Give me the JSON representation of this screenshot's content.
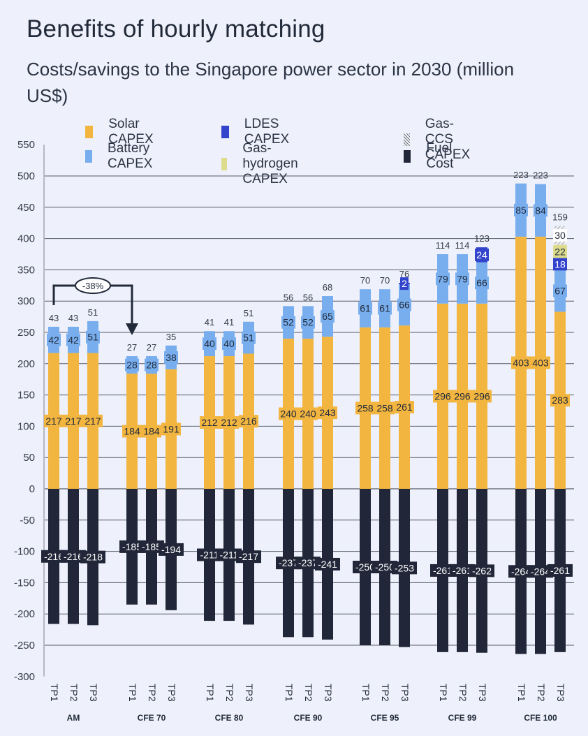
{
  "header": {
    "title": "Benefits of hourly matching",
    "subtitle": "Costs/savings to the Singapore power sector in 2030 (million US$)"
  },
  "colors": {
    "solar": "#f2b53f",
    "battery": "#78aeee",
    "ldes": "#3344cc",
    "gas_hydrogen": "#dcdc8c",
    "gas_ccs": "#a0a0a0",
    "fuel": "#212738",
    "background": "#eef1fb",
    "grid": "#555b68"
  },
  "legend": [
    {
      "key": "solar",
      "label": "Solar CAPEX"
    },
    {
      "key": "ldes",
      "label": "LDES CAPEX"
    },
    {
      "key": "gas_ccs",
      "label": "Gas-CCS CAPEX"
    },
    {
      "key": "battery",
      "label": "Battery CAPEX"
    },
    {
      "key": "gas_hydrogen",
      "label": "Gas-hydrogen CAPEX"
    },
    {
      "key": "fuel",
      "label": "Fuel Cost"
    }
  ],
  "annotation": {
    "label": "-38%",
    "from": "AM TP1",
    "to": "CFE 70 TP1"
  },
  "chart_data": {
    "type": "bar",
    "stacked": true,
    "title": "Benefits of hourly matching",
    "subtitle": "Costs/savings to the Singapore power sector in 2030 (million US$)",
    "xlabel": "",
    "ylabel": "",
    "ylim": [
      -300,
      550
    ],
    "yticks": [
      550,
      500,
      450,
      400,
      350,
      300,
      250,
      200,
      150,
      100,
      50,
      0,
      -50,
      -100,
      -150,
      -200,
      -250,
      -300
    ],
    "grid": true,
    "legend_position": "top",
    "groups": [
      "AM",
      "CFE 70",
      "CFE 80",
      "CFE 90",
      "CFE 95",
      "CFE 99",
      "CFE 100"
    ],
    "sub_categories": [
      "TP1",
      "TP2",
      "TP3"
    ],
    "categories": [
      "AM TP1",
      "AM TP2",
      "AM TP3",
      "CFE 70 TP1",
      "CFE 70 TP2",
      "CFE 70 TP3",
      "CFE 80 TP1",
      "CFE 80 TP2",
      "CFE 80 TP3",
      "CFE 90 TP1",
      "CFE 90 TP2",
      "CFE 90 TP3",
      "CFE 95 TP1",
      "CFE 95 TP2",
      "CFE 95 TP3",
      "CFE 99 TP1",
      "CFE 99 TP2",
      "CFE 99 TP3",
      "CFE 100 TP1",
      "CFE 100 TP2",
      "CFE 100 TP3"
    ],
    "series": [
      {
        "name": "Solar CAPEX",
        "key": "solar",
        "values": [
          217,
          217,
          217,
          184,
          184,
          191,
          212,
          212,
          216,
          240,
          240,
          243,
          258,
          258,
          261,
          296,
          296,
          296,
          403,
          403,
          283
        ]
      },
      {
        "name": "Battery CAPEX",
        "key": "battery",
        "values": [
          42,
          42,
          51,
          28,
          28,
          38,
          40,
          40,
          51,
          52,
          52,
          65,
          61,
          61,
          66,
          79,
          79,
          66,
          85,
          84,
          67
        ]
      },
      {
        "name": "LDES CAPEX",
        "key": "ldes",
        "values": [
          0,
          0,
          0,
          0,
          0,
          0,
          0,
          0,
          0,
          0,
          0,
          0,
          0,
          0,
          2,
          0,
          0,
          24,
          0,
          0,
          18
        ]
      },
      {
        "name": "Gas-hydrogen CAPEX",
        "key": "gas_hydrogen",
        "values": [
          0,
          0,
          0,
          0,
          0,
          0,
          0,
          0,
          0,
          0,
          0,
          0,
          0,
          0,
          0,
          0,
          0,
          0,
          0,
          0,
          22
        ]
      },
      {
        "name": "Gas-CCS CAPEX",
        "key": "gas_ccs",
        "values": [
          0,
          0,
          0,
          0,
          0,
          0,
          0,
          0,
          0,
          0,
          0,
          0,
          0,
          0,
          0,
          0,
          0,
          0,
          0,
          0,
          30
        ]
      },
      {
        "name": "Fuel Cost",
        "key": "fuel",
        "values": [
          -216,
          -216,
          -218,
          -185,
          -185,
          -194,
          -211,
          -211,
          -217,
          -237,
          -237,
          -241,
          -250,
          -250,
          -253,
          -261,
          -261,
          -262,
          -264,
          -264,
          -261
        ]
      }
    ],
    "net_totals": [
      43,
      43,
      51,
      27,
      27,
      35,
      41,
      41,
      51,
      56,
      56,
      68,
      70,
      70,
      76,
      114,
      114,
      123,
      223,
      223,
      159
    ]
  }
}
